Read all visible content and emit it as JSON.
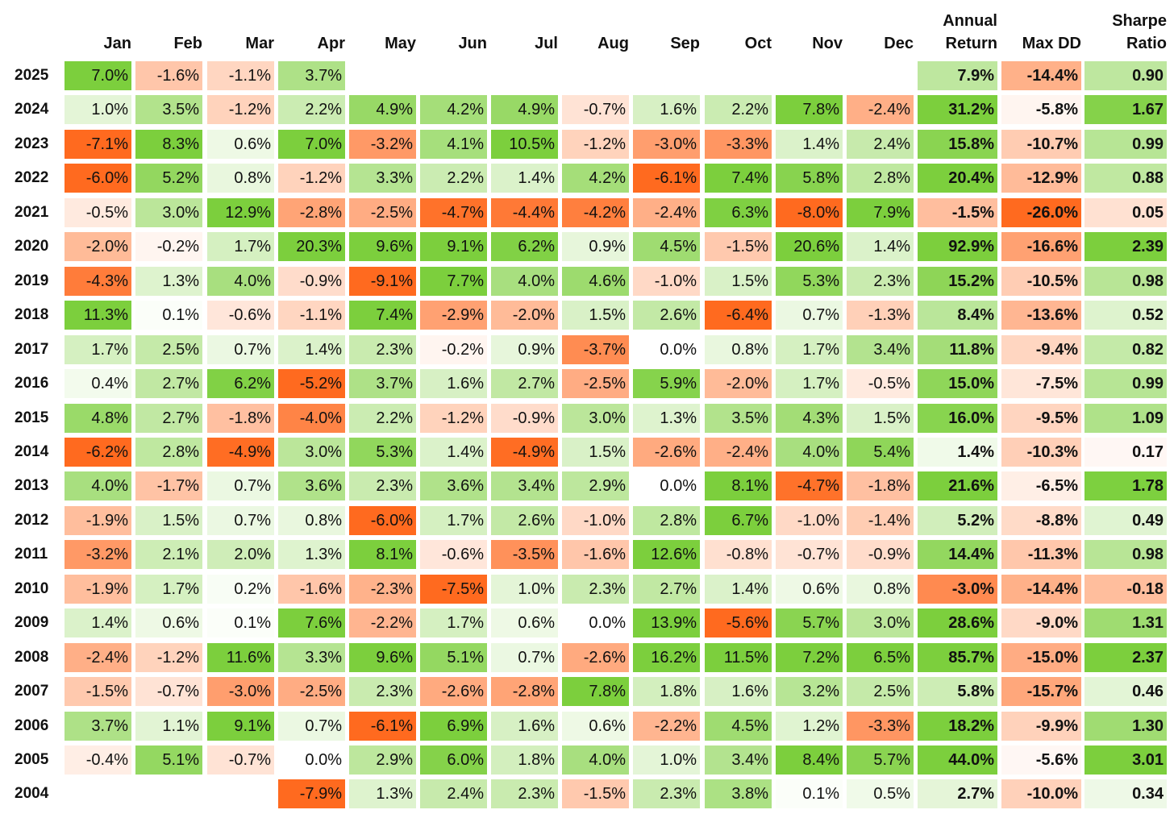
{
  "chart_data": {
    "type": "heatmap",
    "columns": [
      "Jan",
      "Feb",
      "Mar",
      "Apr",
      "May",
      "Jun",
      "Jul",
      "Aug",
      "Sep",
      "Oct",
      "Nov",
      "Dec",
      "Annual Return",
      "Max DD",
      "Sharpe Ratio"
    ],
    "column_headers": [
      [
        "Jan"
      ],
      [
        "Feb"
      ],
      [
        "Mar"
      ],
      [
        "Apr"
      ],
      [
        "May"
      ],
      [
        "Jun"
      ],
      [
        "Jul"
      ],
      [
        "Aug"
      ],
      [
        "Sep"
      ],
      [
        "Oct"
      ],
      [
        "Nov"
      ],
      [
        "Dec"
      ],
      [
        "Annual",
        "Return"
      ],
      [
        "Max DD"
      ],
      [
        "Sharpe",
        "Ratio"
      ]
    ],
    "rows": [
      {
        "year": "2025",
        "values": [
          7.0,
          -1.6,
          -1.1,
          3.7,
          null,
          null,
          null,
          null,
          null,
          null,
          null,
          null,
          7.9,
          -14.4,
          0.9
        ]
      },
      {
        "year": "2024",
        "values": [
          1.0,
          3.5,
          -1.2,
          2.2,
          4.9,
          4.2,
          4.9,
          -0.7,
          1.6,
          2.2,
          7.8,
          -2.4,
          31.2,
          -5.8,
          1.67
        ]
      },
      {
        "year": "2023",
        "values": [
          -7.1,
          8.3,
          0.6,
          7.0,
          -3.2,
          4.1,
          10.5,
          -1.2,
          -3.0,
          -3.3,
          1.4,
          2.4,
          15.8,
          -10.7,
          0.99
        ]
      },
      {
        "year": "2022",
        "values": [
          -6.0,
          5.2,
          0.8,
          -1.2,
          3.3,
          2.2,
          1.4,
          4.2,
          -6.1,
          7.4,
          5.8,
          2.8,
          20.4,
          -12.9,
          0.88
        ]
      },
      {
        "year": "2021",
        "values": [
          -0.5,
          3.0,
          12.9,
          -2.8,
          -2.5,
          -4.7,
          -4.4,
          -4.2,
          -2.4,
          6.3,
          -8.0,
          7.9,
          -1.5,
          -26.0,
          0.05
        ]
      },
      {
        "year": "2020",
        "values": [
          -2.0,
          -0.2,
          1.7,
          20.3,
          9.6,
          9.1,
          6.2,
          0.9,
          4.5,
          -1.5,
          20.6,
          1.4,
          92.9,
          -16.6,
          2.39
        ]
      },
      {
        "year": "2019",
        "values": [
          -4.3,
          1.3,
          4.0,
          -0.9,
          -9.1,
          7.7,
          4.0,
          4.6,
          -1.0,
          1.5,
          5.3,
          2.3,
          15.2,
          -10.5,
          0.98
        ]
      },
      {
        "year": "2018",
        "values": [
          11.3,
          0.1,
          -0.6,
          -1.1,
          7.4,
          -2.9,
          -2.0,
          1.5,
          2.6,
          -6.4,
          0.7,
          -1.3,
          8.4,
          -13.6,
          0.52
        ]
      },
      {
        "year": "2017",
        "values": [
          1.7,
          2.5,
          0.7,
          1.4,
          2.3,
          -0.2,
          0.9,
          -3.7,
          0.0,
          0.8,
          1.7,
          3.4,
          11.8,
          -9.4,
          0.82
        ]
      },
      {
        "year": "2016",
        "values": [
          0.4,
          2.7,
          6.2,
          -5.2,
          3.7,
          1.6,
          2.7,
          -2.5,
          5.9,
          -2.0,
          1.7,
          -0.5,
          15.0,
          -7.5,
          0.99
        ]
      },
      {
        "year": "2015",
        "values": [
          4.8,
          2.7,
          -1.8,
          -4.0,
          2.2,
          -1.2,
          -0.9,
          3.0,
          1.3,
          3.5,
          4.3,
          1.5,
          16.0,
          -9.5,
          1.09
        ]
      },
      {
        "year": "2014",
        "values": [
          -6.2,
          2.8,
          -4.9,
          3.0,
          5.3,
          1.4,
          -4.9,
          1.5,
          -2.6,
          -2.4,
          4.0,
          5.4,
          1.4,
          -10.3,
          0.17
        ]
      },
      {
        "year": "2013",
        "values": [
          4.0,
          -1.7,
          0.7,
          3.6,
          2.3,
          3.6,
          3.4,
          2.9,
          0.0,
          8.1,
          -4.7,
          -1.8,
          21.6,
          -6.5,
          1.78
        ]
      },
      {
        "year": "2012",
        "values": [
          -1.9,
          1.5,
          0.7,
          0.8,
          -6.0,
          1.7,
          2.6,
          -1.0,
          2.8,
          6.7,
          -1.0,
          -1.4,
          5.2,
          -8.8,
          0.49
        ]
      },
      {
        "year": "2011",
        "values": [
          -3.2,
          2.1,
          2.0,
          1.3,
          8.1,
          -0.6,
          -3.5,
          -1.6,
          12.6,
          -0.8,
          -0.7,
          -0.9,
          14.4,
          -11.3,
          0.98
        ]
      },
      {
        "year": "2010",
        "values": [
          -1.9,
          1.7,
          0.2,
          -1.6,
          -2.3,
          -7.5,
          1.0,
          2.3,
          2.7,
          1.4,
          0.6,
          0.8,
          -3.0,
          -14.4,
          -0.18
        ]
      },
      {
        "year": "2009",
        "values": [
          1.4,
          0.6,
          0.1,
          7.6,
          -2.2,
          1.7,
          0.6,
          0.0,
          13.9,
          -5.6,
          5.7,
          3.0,
          28.6,
          -9.0,
          1.31
        ]
      },
      {
        "year": "2008",
        "values": [
          -2.4,
          -1.2,
          11.6,
          3.3,
          9.6,
          5.1,
          0.7,
          -2.6,
          16.2,
          11.5,
          7.2,
          6.5,
          85.7,
          -15.0,
          2.37
        ]
      },
      {
        "year": "2007",
        "values": [
          -1.5,
          -0.7,
          -3.0,
          -2.5,
          2.3,
          -2.6,
          -2.8,
          7.8,
          1.8,
          1.6,
          3.2,
          2.5,
          5.8,
          -15.7,
          0.46
        ]
      },
      {
        "year": "2006",
        "values": [
          3.7,
          1.1,
          9.1,
          0.7,
          -6.1,
          6.9,
          1.6,
          0.6,
          -2.2,
          4.5,
          1.2,
          -3.3,
          18.2,
          -9.9,
          1.3
        ]
      },
      {
        "year": "2005",
        "values": [
          -0.4,
          5.1,
          -0.7,
          0.0,
          2.9,
          6.0,
          1.8,
          4.0,
          1.0,
          3.4,
          8.4,
          5.7,
          44.0,
          -5.6,
          3.01
        ]
      },
      {
        "year": "2004",
        "values": [
          null,
          null,
          null,
          -7.9,
          1.3,
          2.4,
          2.3,
          -1.5,
          2.3,
          3.8,
          0.1,
          0.5,
          2.7,
          -10.0,
          0.34
        ]
      }
    ],
    "units": {
      "percent": "%"
    },
    "colors": {
      "positive": "#7ccf3d",
      "negative": "#ff6a1f",
      "neutral": "#ffffff"
    }
  }
}
